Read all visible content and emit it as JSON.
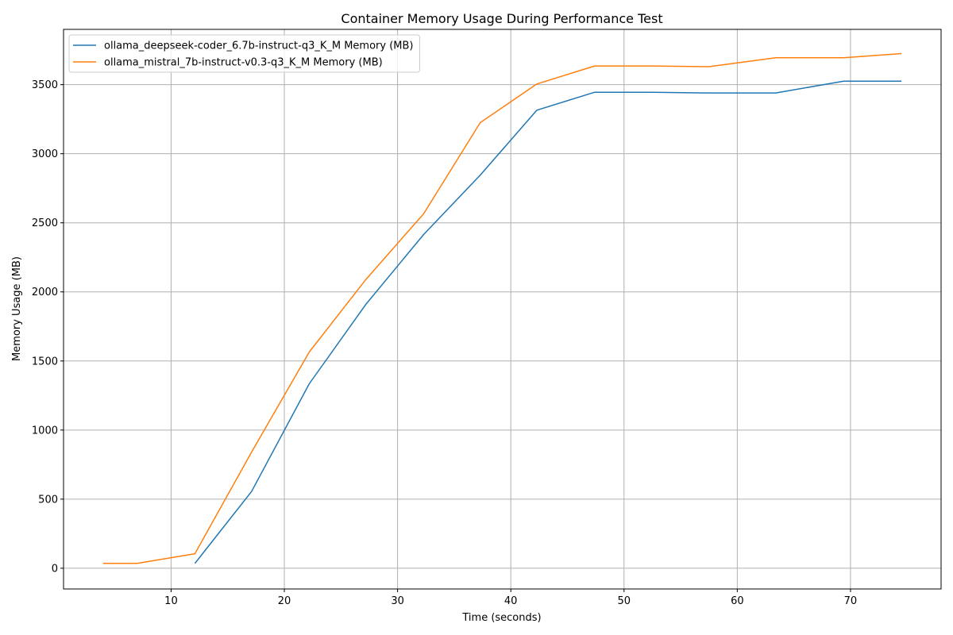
{
  "chart_data": {
    "type": "line",
    "title": "Container Memory Usage During Performance Test",
    "xlabel": "Time (seconds)",
    "ylabel": "Memory Usage (MB)",
    "xlim": [
      0.5,
      78
    ],
    "ylim": [
      -150,
      3900
    ],
    "xticks": [
      10,
      20,
      30,
      40,
      50,
      60,
      70
    ],
    "yticks": [
      0,
      500,
      1000,
      1500,
      2000,
      2500,
      3000,
      3500
    ],
    "grid": true,
    "legend_position": "upper-left",
    "series": [
      {
        "name": "ollama_deepseek-coder_6.7b-instruct-q3_K_M Memory (MB)",
        "color": "#1f77b4",
        "x": [
          12.1,
          17.1,
          22.2,
          27.2,
          32.3,
          37.3,
          42.3,
          47.4,
          52.5,
          57.5,
          63.4,
          69.4,
          74.5
        ],
        "y": [
          35,
          555,
          1335,
          1910,
          2415,
          2845,
          3315,
          3445,
          3445,
          3440,
          3440,
          3525,
          3525
        ]
      },
      {
        "name": "ollama_mistral_7b-instruct-v0.3-q3_K_M Memory (MB)",
        "color": "#ff7f0e",
        "x": [
          4.0,
          7.0,
          12.1,
          17.1,
          22.2,
          27.2,
          32.3,
          37.3,
          42.3,
          47.4,
          52.5,
          57.5,
          63.4,
          69.4,
          74.5
        ],
        "y": [
          35,
          35,
          105,
          840,
          1565,
          2090,
          2565,
          3225,
          3505,
          3635,
          3635,
          3630,
          3695,
          3695,
          3725
        ]
      }
    ]
  }
}
